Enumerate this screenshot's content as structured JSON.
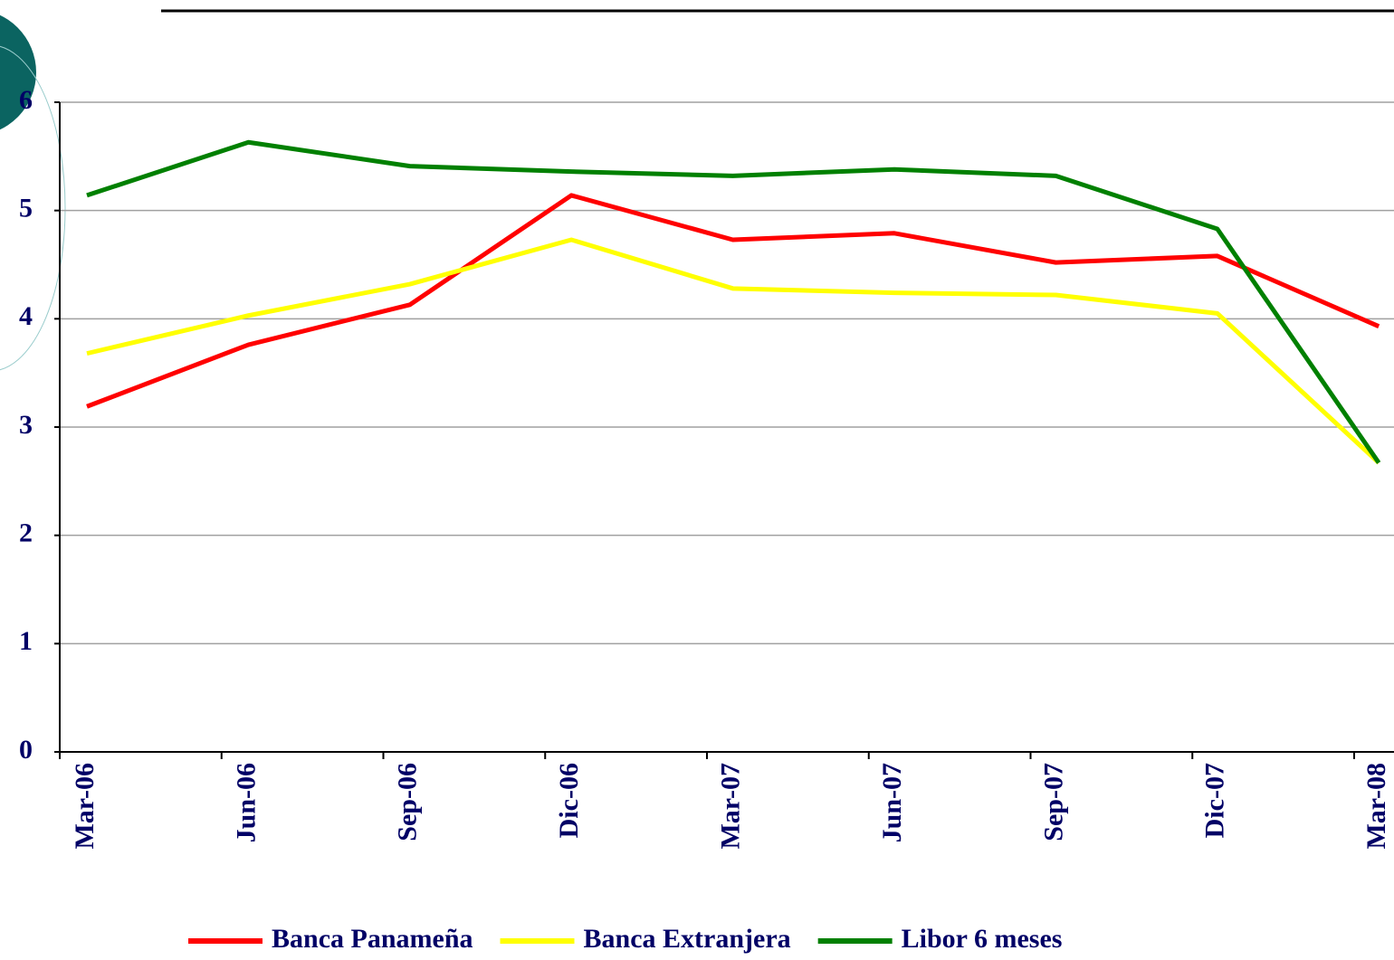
{
  "chart_data": {
    "type": "line",
    "categories": [
      "Mar-06",
      "Jun-06",
      "Sep-06",
      "Dic-06",
      "Mar-07",
      "Jun-07",
      "Sep-07",
      "Dic-07",
      "Mar-08"
    ],
    "series": [
      {
        "name": "Banca Panameña",
        "color": "#ff0000",
        "values": [
          3.19,
          3.76,
          4.13,
          5.14,
          4.73,
          4.79,
          4.52,
          4.58,
          3.93
        ]
      },
      {
        "name": "Banca Extranjera",
        "color": "#ffff00",
        "values": [
          3.68,
          4.03,
          4.32,
          4.73,
          4.28,
          4.24,
          4.22,
          4.05,
          2.67
        ]
      },
      {
        "name": "Libor 6 meses",
        "color": "#008000",
        "values": [
          5.14,
          5.63,
          5.41,
          5.36,
          5.32,
          5.38,
          5.32,
          4.83,
          2.67
        ]
      }
    ],
    "ylim": [
      0,
      6
    ],
    "yticks": [
      0,
      1,
      2,
      3,
      4,
      5,
      6
    ],
    "grid": true,
    "legend": "bottom"
  }
}
